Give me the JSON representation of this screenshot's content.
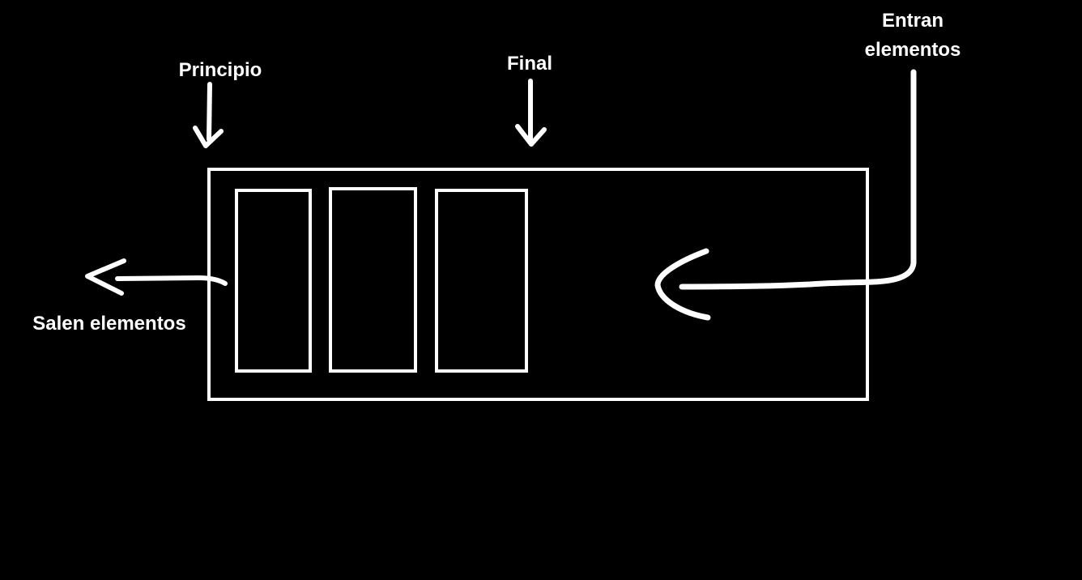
{
  "labels": {
    "principio": "Principio",
    "final": "Final",
    "entran_line1": "Entran",
    "entran_line2": "elementos",
    "salen": "Salen elementos"
  },
  "queue": {
    "element_count": 3
  },
  "colors": {
    "background": "#000000",
    "foreground": "#ffffff"
  }
}
